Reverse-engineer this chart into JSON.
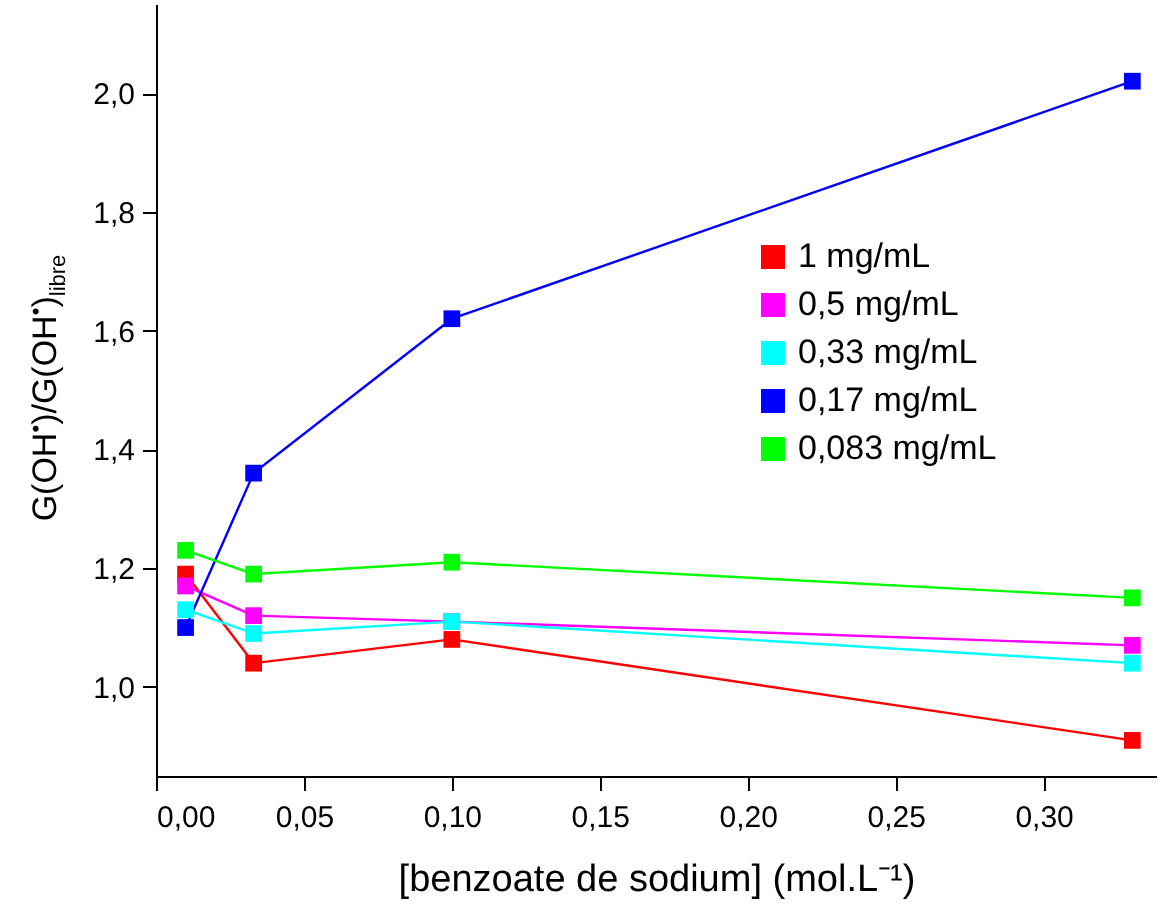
{
  "chart_data": {
    "type": "line",
    "xlabel": "[benzoate de sodium] (mol.L⁻¹)",
    "ylabel": "G(OH$^{•}$)/G(OH$^{•}$)$_{libre}$",
    "x": [
      0.01,
      0.033,
      0.1,
      0.33
    ],
    "series": [
      {
        "name": "1 mg/mL",
        "color": "#ff0000",
        "values": [
          1.19,
          1.04,
          1.08,
          0.91
        ]
      },
      {
        "name": "0,5 mg/mL",
        "color": "#ff00ff",
        "values": [
          1.17,
          1.12,
          1.11,
          1.07
        ]
      },
      {
        "name": "0,33 mg/mL",
        "color": "#00ffff",
        "values": [
          1.13,
          1.09,
          1.11,
          1.04
        ]
      },
      {
        "name": "0,17 mg/mL",
        "color": "#0000ff",
        "values": [
          1.1,
          1.36,
          1.62,
          2.02
        ]
      },
      {
        "name": "0,083 mg/mL",
        "color": "#00ff00",
        "values": [
          1.23,
          1.19,
          1.21,
          1.15
        ]
      }
    ],
    "xlim": [
      0,
      0.338
    ],
    "xticks": [
      {
        "value": 0,
        "label": "0,00"
      },
      {
        "value": 0.05,
        "label": "0,05"
      },
      {
        "value": 0.1,
        "label": "0,10"
      },
      {
        "value": 0.15,
        "label": "0,15"
      },
      {
        "value": 0.2,
        "label": "0,20"
      },
      {
        "value": 0.25,
        "label": "0,25"
      },
      {
        "value": 0.3,
        "label": "0,30"
      }
    ],
    "ylim": [
      0.85,
      2.15
    ],
    "yticks": [
      {
        "value": 1.0,
        "label": "1,0"
      },
      {
        "value": 1.2,
        "label": "1,2"
      },
      {
        "value": 1.4,
        "label": "1,4"
      },
      {
        "value": 1.6,
        "label": "1,6"
      },
      {
        "value": 1.8,
        "label": "1,8"
      },
      {
        "value": 2.0,
        "label": "2,0"
      }
    ],
    "grid": false,
    "legend": "right",
    "marker": "square",
    "line_style": "solid"
  }
}
